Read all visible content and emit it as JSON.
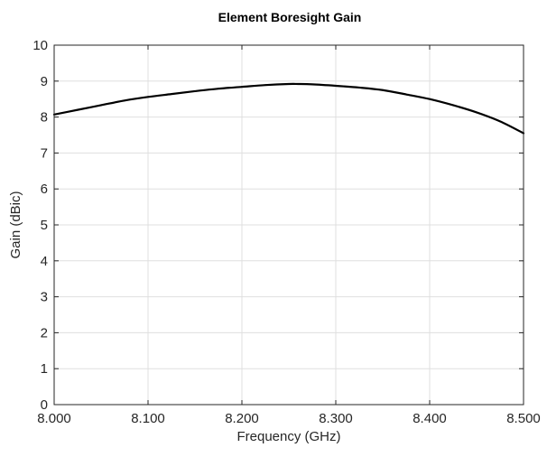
{
  "chart_data": {
    "type": "line",
    "title": "Element Boresight Gain",
    "xlabel": "Frequency (GHz)",
    "ylabel": "Gain (dBic)",
    "xlim": [
      8.0,
      8.5
    ],
    "ylim": [
      0,
      10
    ],
    "grid": true,
    "xticks": [
      8.0,
      8.1,
      8.2,
      8.3,
      8.4,
      8.5
    ],
    "xtick_labels": [
      "8.000",
      "8.100",
      "8.200",
      "8.300",
      "8.400",
      "8.500"
    ],
    "yticks": [
      0,
      1,
      2,
      3,
      4,
      5,
      6,
      7,
      8,
      9,
      10
    ],
    "ytick_labels": [
      "0",
      "1",
      "2",
      "3",
      "4",
      "5",
      "6",
      "7",
      "8",
      "9",
      "10"
    ],
    "series": [
      {
        "color": "#000000",
        "x": [
          8.0,
          8.025,
          8.05,
          8.075,
          8.1,
          8.125,
          8.15,
          8.175,
          8.2,
          8.225,
          8.25,
          8.26,
          8.275,
          8.3,
          8.325,
          8.35,
          8.375,
          8.4,
          8.425,
          8.45,
          8.475,
          8.5
        ],
        "y": [
          8.07,
          8.2,
          8.33,
          8.46,
          8.56,
          8.64,
          8.72,
          8.79,
          8.84,
          8.89,
          8.92,
          8.92,
          8.91,
          8.87,
          8.82,
          8.75,
          8.63,
          8.5,
          8.33,
          8.13,
          7.88,
          7.55
        ]
      }
    ]
  }
}
